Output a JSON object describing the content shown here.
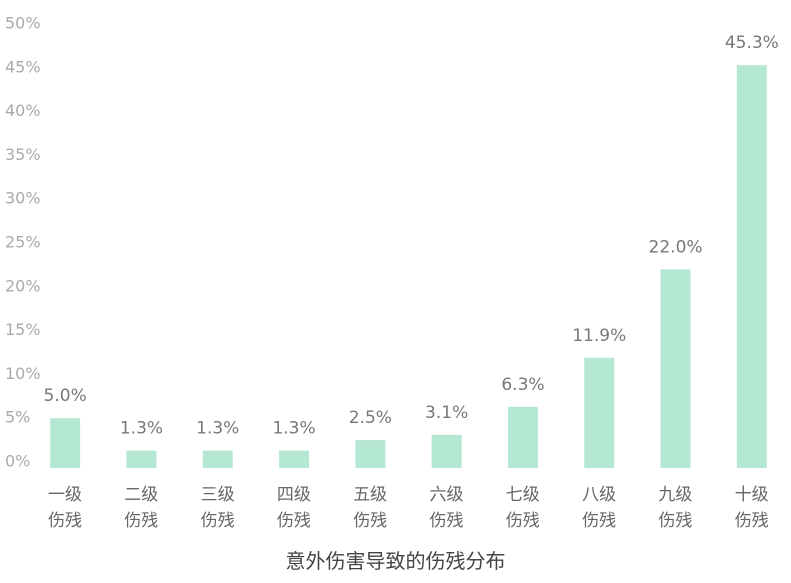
{
  "chart_data": {
    "type": "bar",
    "title": "意外伤害导致的伤残分布",
    "categories": [
      "一级伤残",
      "二级伤残",
      "三级伤残",
      "四级伤残",
      "五级伤残",
      "六级伤残",
      "七级伤残",
      "八级伤残",
      "九级伤残",
      "十级伤残"
    ],
    "values": [
      5.0,
      1.3,
      1.3,
      1.3,
      2.5,
      3.1,
      6.3,
      11.9,
      22.0,
      45.3
    ],
    "value_labels": [
      "5.0%",
      "1.3%",
      "1.3%",
      "1.3%",
      "2.5%",
      "3.1%",
      "6.3%",
      "11.9%",
      "22.0%",
      "45.3%"
    ],
    "color": "#b5e8d2",
    "ylim": [
      0,
      50
    ],
    "yticks": [
      {
        "value": 0,
        "label": "0%"
      },
      {
        "value": 5,
        "label": "5%"
      },
      {
        "value": 10,
        "label": "10%"
      },
      {
        "value": 15,
        "label": "15%"
      },
      {
        "value": 20,
        "label": "20%"
      },
      {
        "value": 25,
        "label": "25%"
      },
      {
        "value": 30,
        "label": "30%"
      },
      {
        "value": 35,
        "label": "35%"
      },
      {
        "value": 40,
        "label": "40%"
      },
      {
        "value": 45,
        "label": "45%"
      },
      {
        "value": 50,
        "label": "50%"
      }
    ],
    "grid": false
  }
}
